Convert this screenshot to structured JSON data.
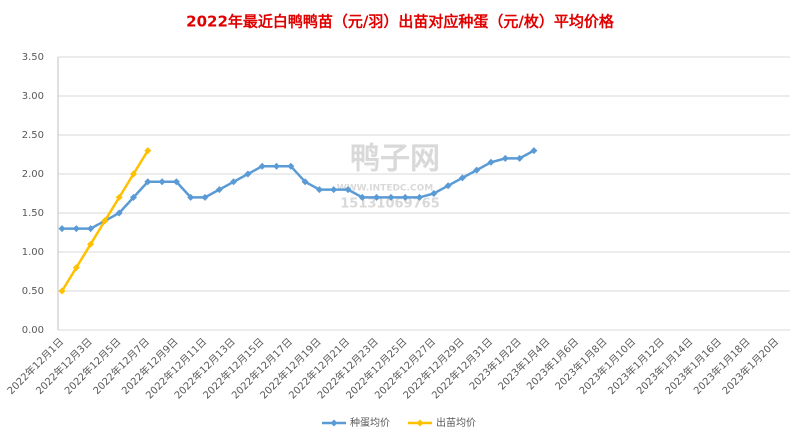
{
  "chart_data": {
    "type": "line",
    "title": "2022年最近白鸭鸭苗（元/羽）出苗对应种蛋（元/枚）平均价格",
    "watermark": [
      "鸭子网",
      "WWW.INTEDC.COM",
      "15131069765"
    ],
    "categories": [
      "2022年12月1日",
      null,
      "2022年12月3日",
      null,
      "2022年12月5日",
      null,
      "2022年12月7日",
      null,
      "2022年12月9日",
      null,
      "2022年12月11日",
      null,
      "2022年12月13日",
      null,
      "2022年12月15日",
      null,
      "2022年12月17日",
      null,
      "2022年12月19日",
      null,
      "2022年12月21日",
      null,
      "2022年12月23日",
      null,
      "2022年12月25日",
      null,
      "2022年12月27日",
      null,
      "2022年12月29日",
      null,
      "2022年12月31日",
      null,
      "2023年1月2日",
      null,
      "2023年1月4日",
      null,
      "2023年1月6日",
      null,
      "2023年1月8日",
      null,
      "2023年1月10日",
      null,
      "2023年1月12日",
      null,
      "2023年1月14日",
      null,
      "2023年1月16日",
      null,
      "2023年1月18日",
      null,
      "2023年1月20日"
    ],
    "series": [
      {
        "name": "种蛋均价",
        "color": "#5b9bd5",
        "values": [
          1.3,
          1.3,
          1.3,
          1.4,
          1.5,
          1.7,
          1.9,
          1.9,
          1.9,
          1.7,
          1.7,
          1.8,
          1.9,
          2.0,
          2.1,
          2.1,
          2.1,
          1.9,
          1.8,
          1.8,
          1.8,
          1.7,
          1.7,
          1.7,
          1.7,
          1.7,
          1.75,
          1.85,
          1.95,
          2.05,
          2.15,
          2.2,
          2.2,
          2.3,
          null,
          null,
          null,
          null,
          null,
          null,
          null,
          null,
          null,
          null,
          null,
          null,
          null,
          null,
          null,
          null,
          null
        ]
      },
      {
        "name": "出苗均价",
        "color": "#ffc000",
        "values": [
          0.5,
          0.8,
          1.1,
          1.4,
          1.7,
          2.0,
          2.3,
          null,
          null,
          null,
          null,
          null,
          null,
          null,
          null,
          null,
          null,
          null,
          null,
          null,
          null,
          null,
          null,
          null,
          null,
          null,
          null,
          null,
          null,
          null,
          null,
          null,
          null,
          null,
          null,
          null,
          null,
          null,
          null,
          null,
          null,
          null,
          null,
          null,
          null,
          null,
          null,
          null,
          null,
          null,
          null
        ]
      }
    ],
    "ylim": [
      0,
      3.5
    ],
    "yticks": [
      {
        "value": 0,
        "label": "0.00"
      },
      {
        "value": 0.5,
        "label": "0.50"
      },
      {
        "value": 1,
        "label": "1.00"
      },
      {
        "value": 1.5,
        "label": "1.50"
      },
      {
        "value": 2,
        "label": "2.00"
      },
      {
        "value": 2.5,
        "label": "2.50"
      },
      {
        "value": 3,
        "label": "3.00"
      },
      {
        "value": 3.5,
        "label": "3.50"
      }
    ],
    "grid": true,
    "legend": "bottom"
  }
}
